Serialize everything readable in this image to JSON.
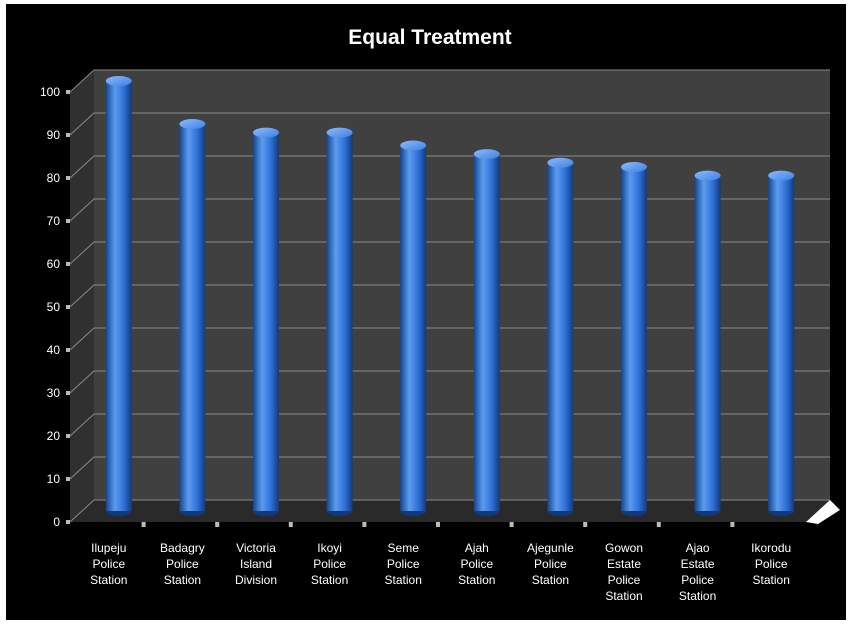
{
  "chart_data": {
    "type": "bar",
    "style": "3d-cylinder",
    "title": "Equal Treatment",
    "xlabel": "",
    "ylabel": "",
    "ylim": [
      0,
      100
    ],
    "yticks": [
      0,
      10,
      20,
      30,
      40,
      50,
      60,
      70,
      80,
      90,
      100
    ],
    "grid": true,
    "legend": "none",
    "categories": [
      [
        "Ilupeju",
        "Police",
        "Station"
      ],
      [
        "Badagry",
        "Police",
        "Station"
      ],
      [
        "Victoria",
        "Island",
        "Division"
      ],
      [
        "Ikoyi",
        "Police",
        "Station"
      ],
      [
        "Seme",
        "Police",
        "Station"
      ],
      [
        "Ajah",
        "Police",
        "Station"
      ],
      [
        "Ajegunle",
        "Police",
        "Station"
      ],
      [
        "Gowon",
        "Estate",
        "Police",
        "Station"
      ],
      [
        "Ajao",
        "Estate",
        "Police",
        "Station"
      ],
      [
        "Ikorodu",
        "Police",
        "Station"
      ]
    ],
    "values": [
      100,
      90,
      88,
      88,
      85,
      83,
      81,
      80,
      78,
      78
    ],
    "colors": {
      "background": "#000000",
      "wall": "#404040",
      "floor": "#2a2a2a",
      "bar_light": "#5b9cf0",
      "bar_mid": "#2f6fd6",
      "bar_dark": "#15448f",
      "text": "#ffffff",
      "grid": "#8a8a8a"
    }
  }
}
